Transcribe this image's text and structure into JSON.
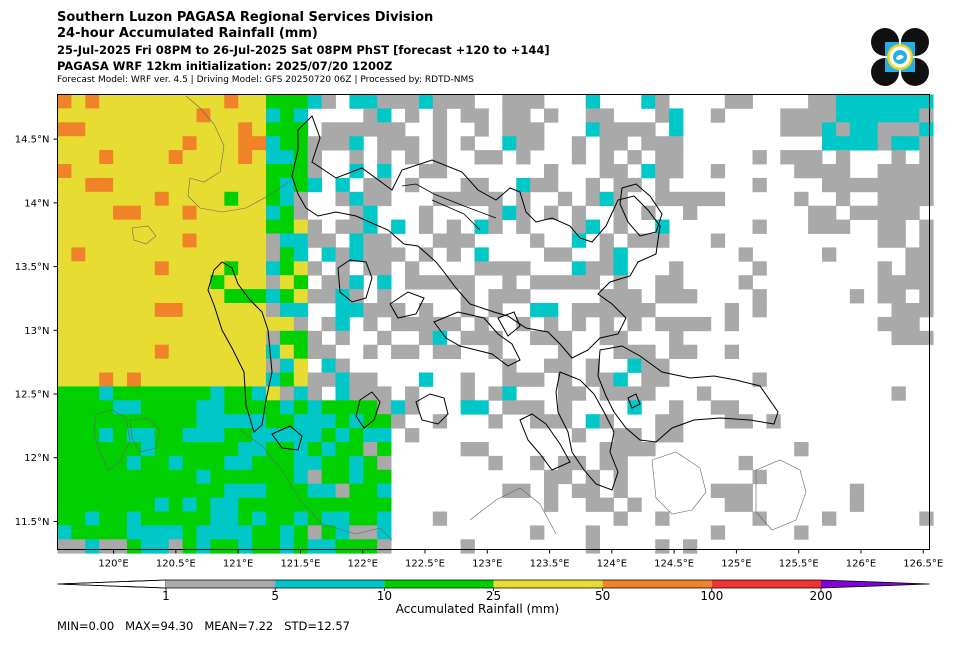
{
  "header": {
    "line1": "Southern Luzon PAGASA Regional Services Division",
    "line2": "24-hour Accumulated Rainfall (mm)",
    "line3": "25-Jul-2025 Fri 08PM to 26-Jul-2025 Sat 08PM PhST [forecast +120 to +144]",
    "line4": "PAGASA WRF 12km initialization: 2025/07/20 1200Z",
    "line5": "Forecast Model: WRF ver. 4.5 | Driving Model: GFS 20250720 06Z | Processed by: RDTD-NMS"
  },
  "map": {
    "lon_ticks": [
      "120°E",
      "120.5°E",
      "121°E",
      "121.5°E",
      "122°E",
      "122.5°E",
      "123°E",
      "123.5°E",
      "124°E",
      "124.5°E",
      "125°E",
      "125.5°E",
      "126°E",
      "126.5°E"
    ],
    "lat_ticks": [
      "14.5°N",
      "14°N",
      "13.5°N",
      "13°N",
      "12.5°N",
      "12°N",
      "11.5°N"
    ],
    "lon_range": [
      119.55,
      126.55
    ],
    "lat_range": [
      11.28,
      14.85
    ]
  },
  "colorbar": {
    "label": "Accumulated Rainfall (mm)",
    "levels": [
      "1",
      "5",
      "10",
      "25",
      "50",
      "100",
      "200"
    ],
    "colors": {
      "lt1": "#ffffff",
      "c1_5": "#a9a9a9",
      "c5_10": "#00c8c8",
      "c10_25": "#00d000",
      "c25_50": "#e6dc32",
      "c50_100": "#f08228",
      "c100_200": "#f03232",
      "gt200": "#8200dc"
    }
  },
  "stats": {
    "min": "MIN=0.00",
    "max": "MAX=94.30",
    "mean": "MEAN=7.22",
    "std": "STD=12.57"
  },
  "logo": "pagasa-seal-icon"
}
